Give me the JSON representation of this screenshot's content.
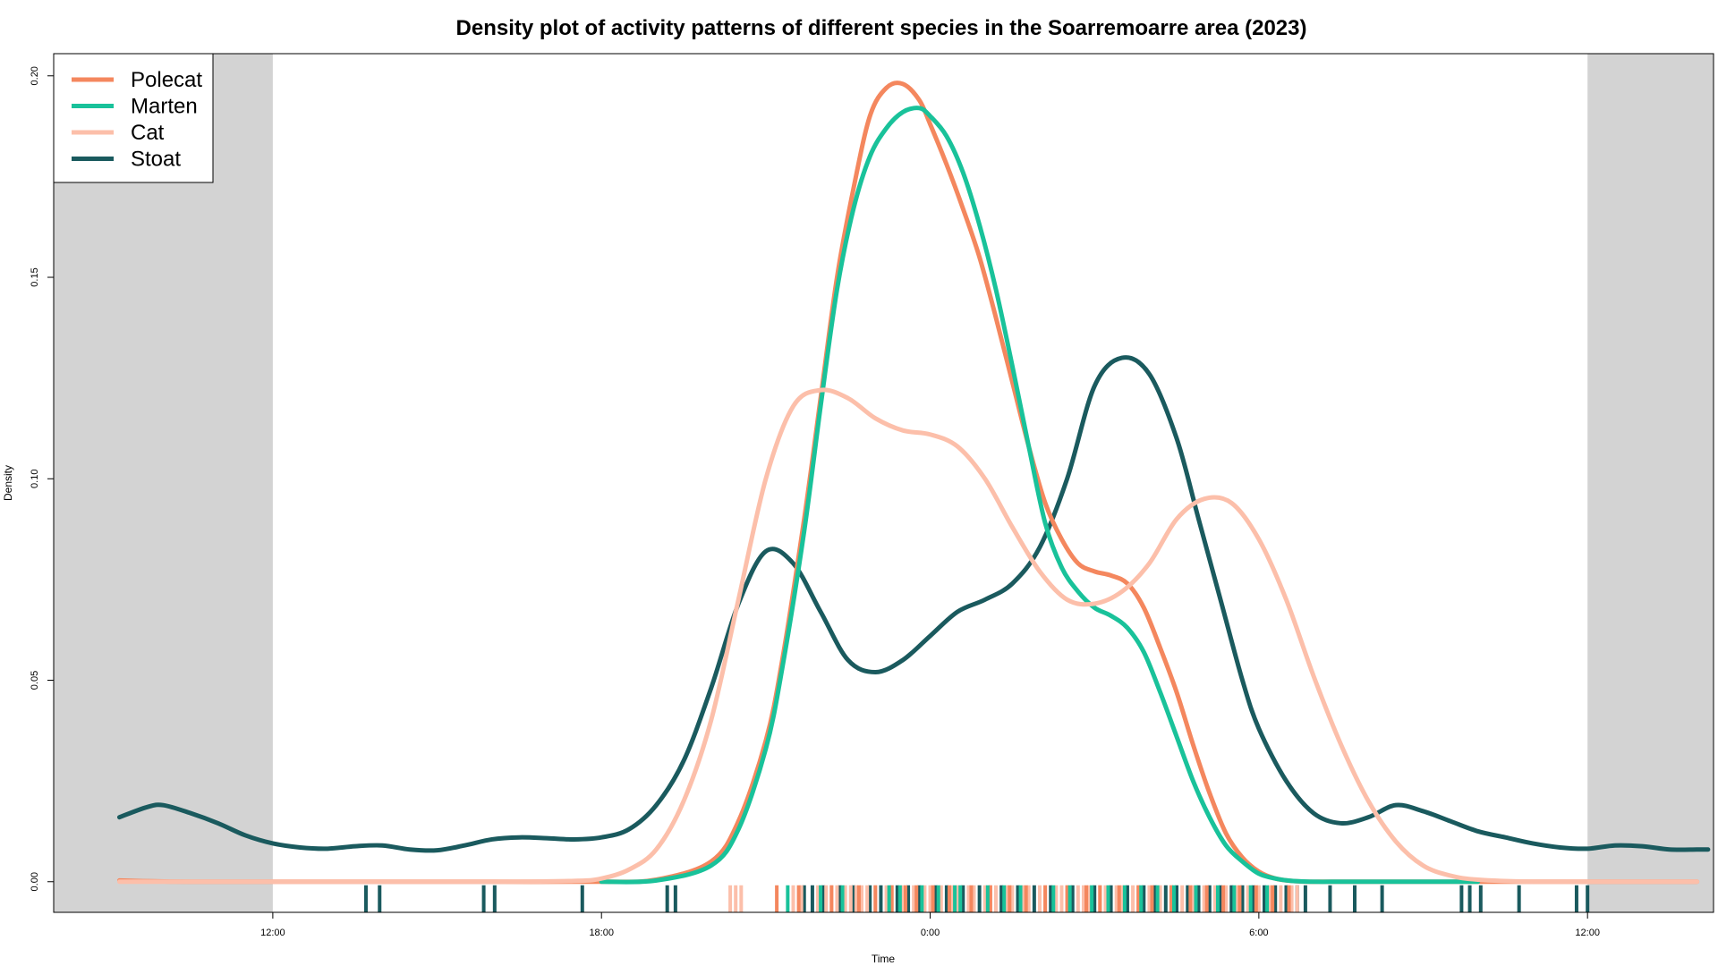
{
  "chart_data": {
    "type": "line",
    "title": "Density plot of activity patterns of different species in the Soarremoarre area (2023)",
    "xlabel": "Time",
    "ylabel": "Density",
    "xlim": [
      8,
      38.3
    ],
    "ylim": [
      -0.0076,
      0.2055
    ],
    "x_ticks": [
      {
        "value": 12,
        "label": "12:00"
      },
      {
        "value": 18,
        "label": "18:00"
      },
      {
        "value": 24,
        "label": "0:00"
      },
      {
        "value": 30,
        "label": "6:00"
      },
      {
        "value": 36,
        "label": "12:00"
      }
    ],
    "y_ticks": [
      {
        "value": 0,
        "label": "0.00"
      },
      {
        "value": 0.05,
        "label": "0.05"
      },
      {
        "value": 0.1,
        "label": "0.10"
      },
      {
        "value": 0.15,
        "label": "0.15"
      },
      {
        "value": 0.2,
        "label": "0.20"
      }
    ],
    "shaded_ranges": [
      [
        8,
        12
      ],
      [
        36,
        38.3
      ]
    ],
    "shade_color": "#d3d3d3",
    "legend_position": "top-left",
    "series": [
      {
        "name": "Polecat",
        "color": "#f4875e",
        "x": [
          9.2,
          9.8,
          10.5,
          11,
          12,
          14,
          16,
          18,
          19,
          20,
          20.5,
          21,
          21.3,
          21.7,
          22,
          22.3,
          22.6,
          22.9,
          23.2,
          23.5,
          23.8,
          24,
          24.3,
          24.6,
          24.9,
          25.2,
          25.5,
          25.8,
          26.1,
          26.4,
          26.7,
          27,
          27.3,
          27.6,
          27.9,
          28.2,
          28.5,
          28.8,
          29.1,
          29.4,
          29.7,
          30,
          30.3,
          30.6,
          30.9,
          31.2,
          31.6,
          32,
          33,
          34,
          35,
          36,
          38
        ],
        "y": [
          0.0003,
          0.0001,
          0,
          0,
          0,
          0,
          0,
          0,
          0.0005,
          0.005,
          0.015,
          0.035,
          0.055,
          0.09,
          0.12,
          0.15,
          0.172,
          0.19,
          0.197,
          0.198,
          0.194,
          0.188,
          0.178,
          0.167,
          0.155,
          0.14,
          0.124,
          0.108,
          0.094,
          0.085,
          0.079,
          0.077,
          0.076,
          0.074,
          0.068,
          0.058,
          0.047,
          0.034,
          0.022,
          0.012,
          0.006,
          0.0025,
          0.0008,
          0.0002,
          0,
          0,
          0,
          0,
          0,
          0,
          0,
          0,
          0
        ]
      },
      {
        "name": "Marten",
        "color": "#19c29a",
        "x": [
          18,
          19,
          20,
          20.5,
          21,
          21.3,
          21.7,
          22,
          22.3,
          22.6,
          22.9,
          23.2,
          23.5,
          23.8,
          24,
          24.3,
          24.6,
          24.9,
          25.2,
          25.5,
          25.8,
          26.1,
          26.4,
          26.7,
          27,
          27.3,
          27.6,
          27.9,
          28.2,
          28.5,
          28.8,
          29.1,
          29.4,
          29.7,
          30,
          30.3,
          30.6,
          31,
          31.5,
          32,
          33,
          34
        ],
        "y": [
          0,
          0.0003,
          0.004,
          0.013,
          0.033,
          0.053,
          0.087,
          0.118,
          0.147,
          0.167,
          0.18,
          0.187,
          0.191,
          0.192,
          0.19,
          0.185,
          0.176,
          0.163,
          0.147,
          0.128,
          0.108,
          0.089,
          0.078,
          0.072,
          0.068,
          0.066,
          0.063,
          0.057,
          0.047,
          0.036,
          0.025,
          0.016,
          0.009,
          0.005,
          0.002,
          0.0008,
          0.0002,
          0,
          0,
          0,
          0,
          0
        ]
      },
      {
        "name": "Cat",
        "color": "#fcbfaa",
        "x": [
          9.2,
          10,
          12,
          14,
          16,
          17.5,
          18,
          18.5,
          19,
          19.5,
          20,
          20.5,
          21,
          21.5,
          22,
          22.5,
          23,
          23.5,
          24,
          24.5,
          25,
          25.5,
          26,
          26.5,
          27,
          27.5,
          28,
          28.5,
          29,
          29.5,
          30,
          30.5,
          31,
          31.5,
          32,
          32.5,
          33,
          33.5,
          34,
          35,
          36,
          38
        ],
        "y": [
          0,
          0,
          0,
          0,
          0,
          0.0002,
          0.0008,
          0.003,
          0.008,
          0.02,
          0.04,
          0.07,
          0.1,
          0.118,
          0.122,
          0.12,
          0.115,
          0.112,
          0.111,
          0.108,
          0.1,
          0.088,
          0.077,
          0.07,
          0.069,
          0.072,
          0.079,
          0.09,
          0.095,
          0.094,
          0.085,
          0.07,
          0.051,
          0.034,
          0.02,
          0.01,
          0.004,
          0.0015,
          0.0005,
          0,
          0,
          0
        ]
      },
      {
        "name": "Stoat",
        "color": "#1a5a5e",
        "x": [
          9.2,
          9.7,
          10,
          10.5,
          11,
          11.5,
          12,
          12.5,
          13,
          13.5,
          14,
          14.5,
          15,
          15.5,
          16,
          16.5,
          17,
          17.5,
          18,
          18.5,
          19,
          19.5,
          20,
          20.5,
          21,
          21.5,
          22,
          22.5,
          23,
          23.5,
          24,
          24.5,
          25,
          25.5,
          26,
          26.5,
          27,
          27.5,
          28,
          28.5,
          28.9,
          29.3,
          29.7,
          30,
          30.5,
          31,
          31.5,
          32,
          32.5,
          33,
          33.5,
          34,
          34.5,
          35,
          35.5,
          36,
          36.5,
          37,
          37.5,
          38,
          38.2
        ],
        "y": [
          0.016,
          0.0185,
          0.019,
          0.017,
          0.0145,
          0.0115,
          0.0095,
          0.0085,
          0.0082,
          0.0088,
          0.009,
          0.008,
          0.0078,
          0.009,
          0.0105,
          0.011,
          0.0108,
          0.0105,
          0.011,
          0.013,
          0.019,
          0.03,
          0.048,
          0.069,
          0.082,
          0.079,
          0.067,
          0.055,
          0.052,
          0.055,
          0.061,
          0.067,
          0.07,
          0.074,
          0.083,
          0.1,
          0.123,
          0.13,
          0.126,
          0.11,
          0.09,
          0.07,
          0.05,
          0.038,
          0.025,
          0.017,
          0.0145,
          0.016,
          0.019,
          0.0175,
          0.015,
          0.0125,
          0.011,
          0.0095,
          0.0085,
          0.0082,
          0.009,
          0.0088,
          0.008,
          0.008,
          0.008
        ]
      }
    ],
    "rug": [
      {
        "series": "Stoat",
        "x": [
          13.7,
          13.95,
          15.85,
          16.05,
          17.65,
          19.2,
          19.35,
          21.7,
          21.85,
          22.05,
          22.35,
          22.6,
          22.9,
          23.1,
          23.4,
          23.6,
          23.8,
          24.1,
          24.3,
          24.6,
          24.9,
          25.3,
          25.6,
          25.9,
          26.2,
          26.6,
          27.0,
          27.3,
          27.6,
          27.9,
          28.1,
          28.3,
          28.5,
          28.7,
          28.9,
          29.1,
          29.3,
          29.5,
          29.7,
          29.9,
          30.1,
          30.3,
          30.5,
          30.7,
          30.85,
          31.3,
          31.75,
          32.25,
          33.7,
          33.85,
          34.05,
          34.75,
          35.8,
          36.0
        ]
      },
      {
        "series": "Cat",
        "x": [
          20.35,
          20.45,
          20.55,
          21.5,
          21.65,
          21.95,
          22.1,
          22.2,
          22.3,
          22.45,
          22.55,
          22.65,
          22.75,
          22.85,
          23.0,
          23.2,
          23.3,
          23.5,
          23.7,
          23.9,
          24.0,
          24.2,
          24.4,
          24.5,
          24.7,
          24.8,
          25.0,
          25.1,
          25.2,
          25.4,
          25.5,
          25.7,
          25.8,
          26.0,
          26.1,
          26.3,
          26.4,
          26.5,
          26.7,
          26.8,
          26.9,
          27.1,
          27.2,
          27.4,
          27.5,
          27.7,
          27.8,
          28.0,
          28.2,
          28.4,
          28.6,
          28.8,
          29.0,
          29.2,
          29.4,
          29.6,
          29.8,
          30.0,
          30.2,
          30.4,
          30.6,
          30.7
        ]
      },
      {
        "series": "Polecat",
        "x": [
          21.2,
          21.6,
          22.2,
          22.7,
          23.0,
          23.3,
          23.55,
          23.75,
          24.05,
          24.35,
          24.75,
          25.1,
          25.45,
          25.75,
          26.1,
          26.5,
          26.85,
          27.1,
          27.45,
          27.8,
          28.05,
          28.4,
          28.75,
          29.05,
          29.35,
          29.65,
          29.95,
          30.25,
          30.55
        ]
      },
      {
        "series": "Marten",
        "x": [
          21.4,
          22.0,
          22.4,
          23.25,
          23.45,
          23.85,
          24.15,
          24.45,
          24.55,
          25.05,
          25.35,
          25.65,
          26.25,
          26.55,
          26.95,
          27.25,
          27.55,
          27.85,
          28.15,
          28.45,
          28.85,
          29.25,
          29.55,
          29.85,
          30.15
        ]
      }
    ]
  }
}
